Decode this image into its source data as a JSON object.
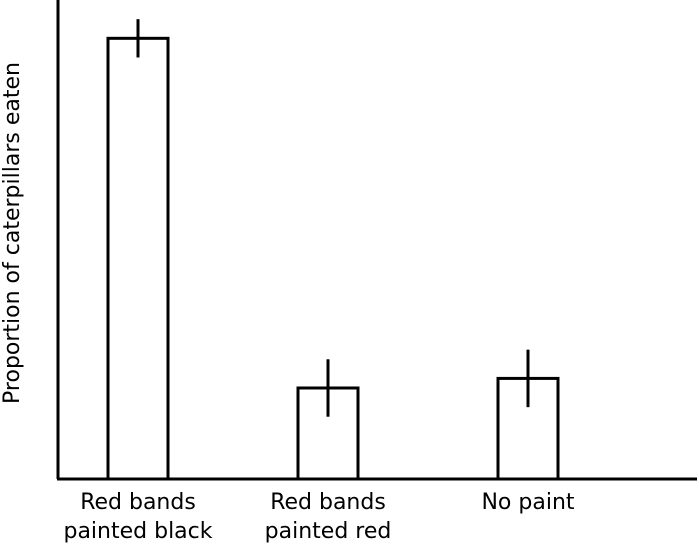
{
  "chart_data": {
    "type": "bar",
    "title": "",
    "xlabel": "",
    "ylabel": "Proportion of caterpillars eaten",
    "categories": [
      [
        "Red bands",
        "painted black"
      ],
      [
        "Red bands",
        "painted red"
      ],
      [
        "No paint"
      ]
    ],
    "values": [
      0.92,
      0.19,
      0.21
    ],
    "errors": [
      0.04,
      0.06,
      0.06
    ],
    "ylim": [
      0,
      1
    ],
    "grid": false,
    "y_ticks_shown": false,
    "bar_fill": "#ffffff",
    "bar_stroke": "#000000"
  }
}
